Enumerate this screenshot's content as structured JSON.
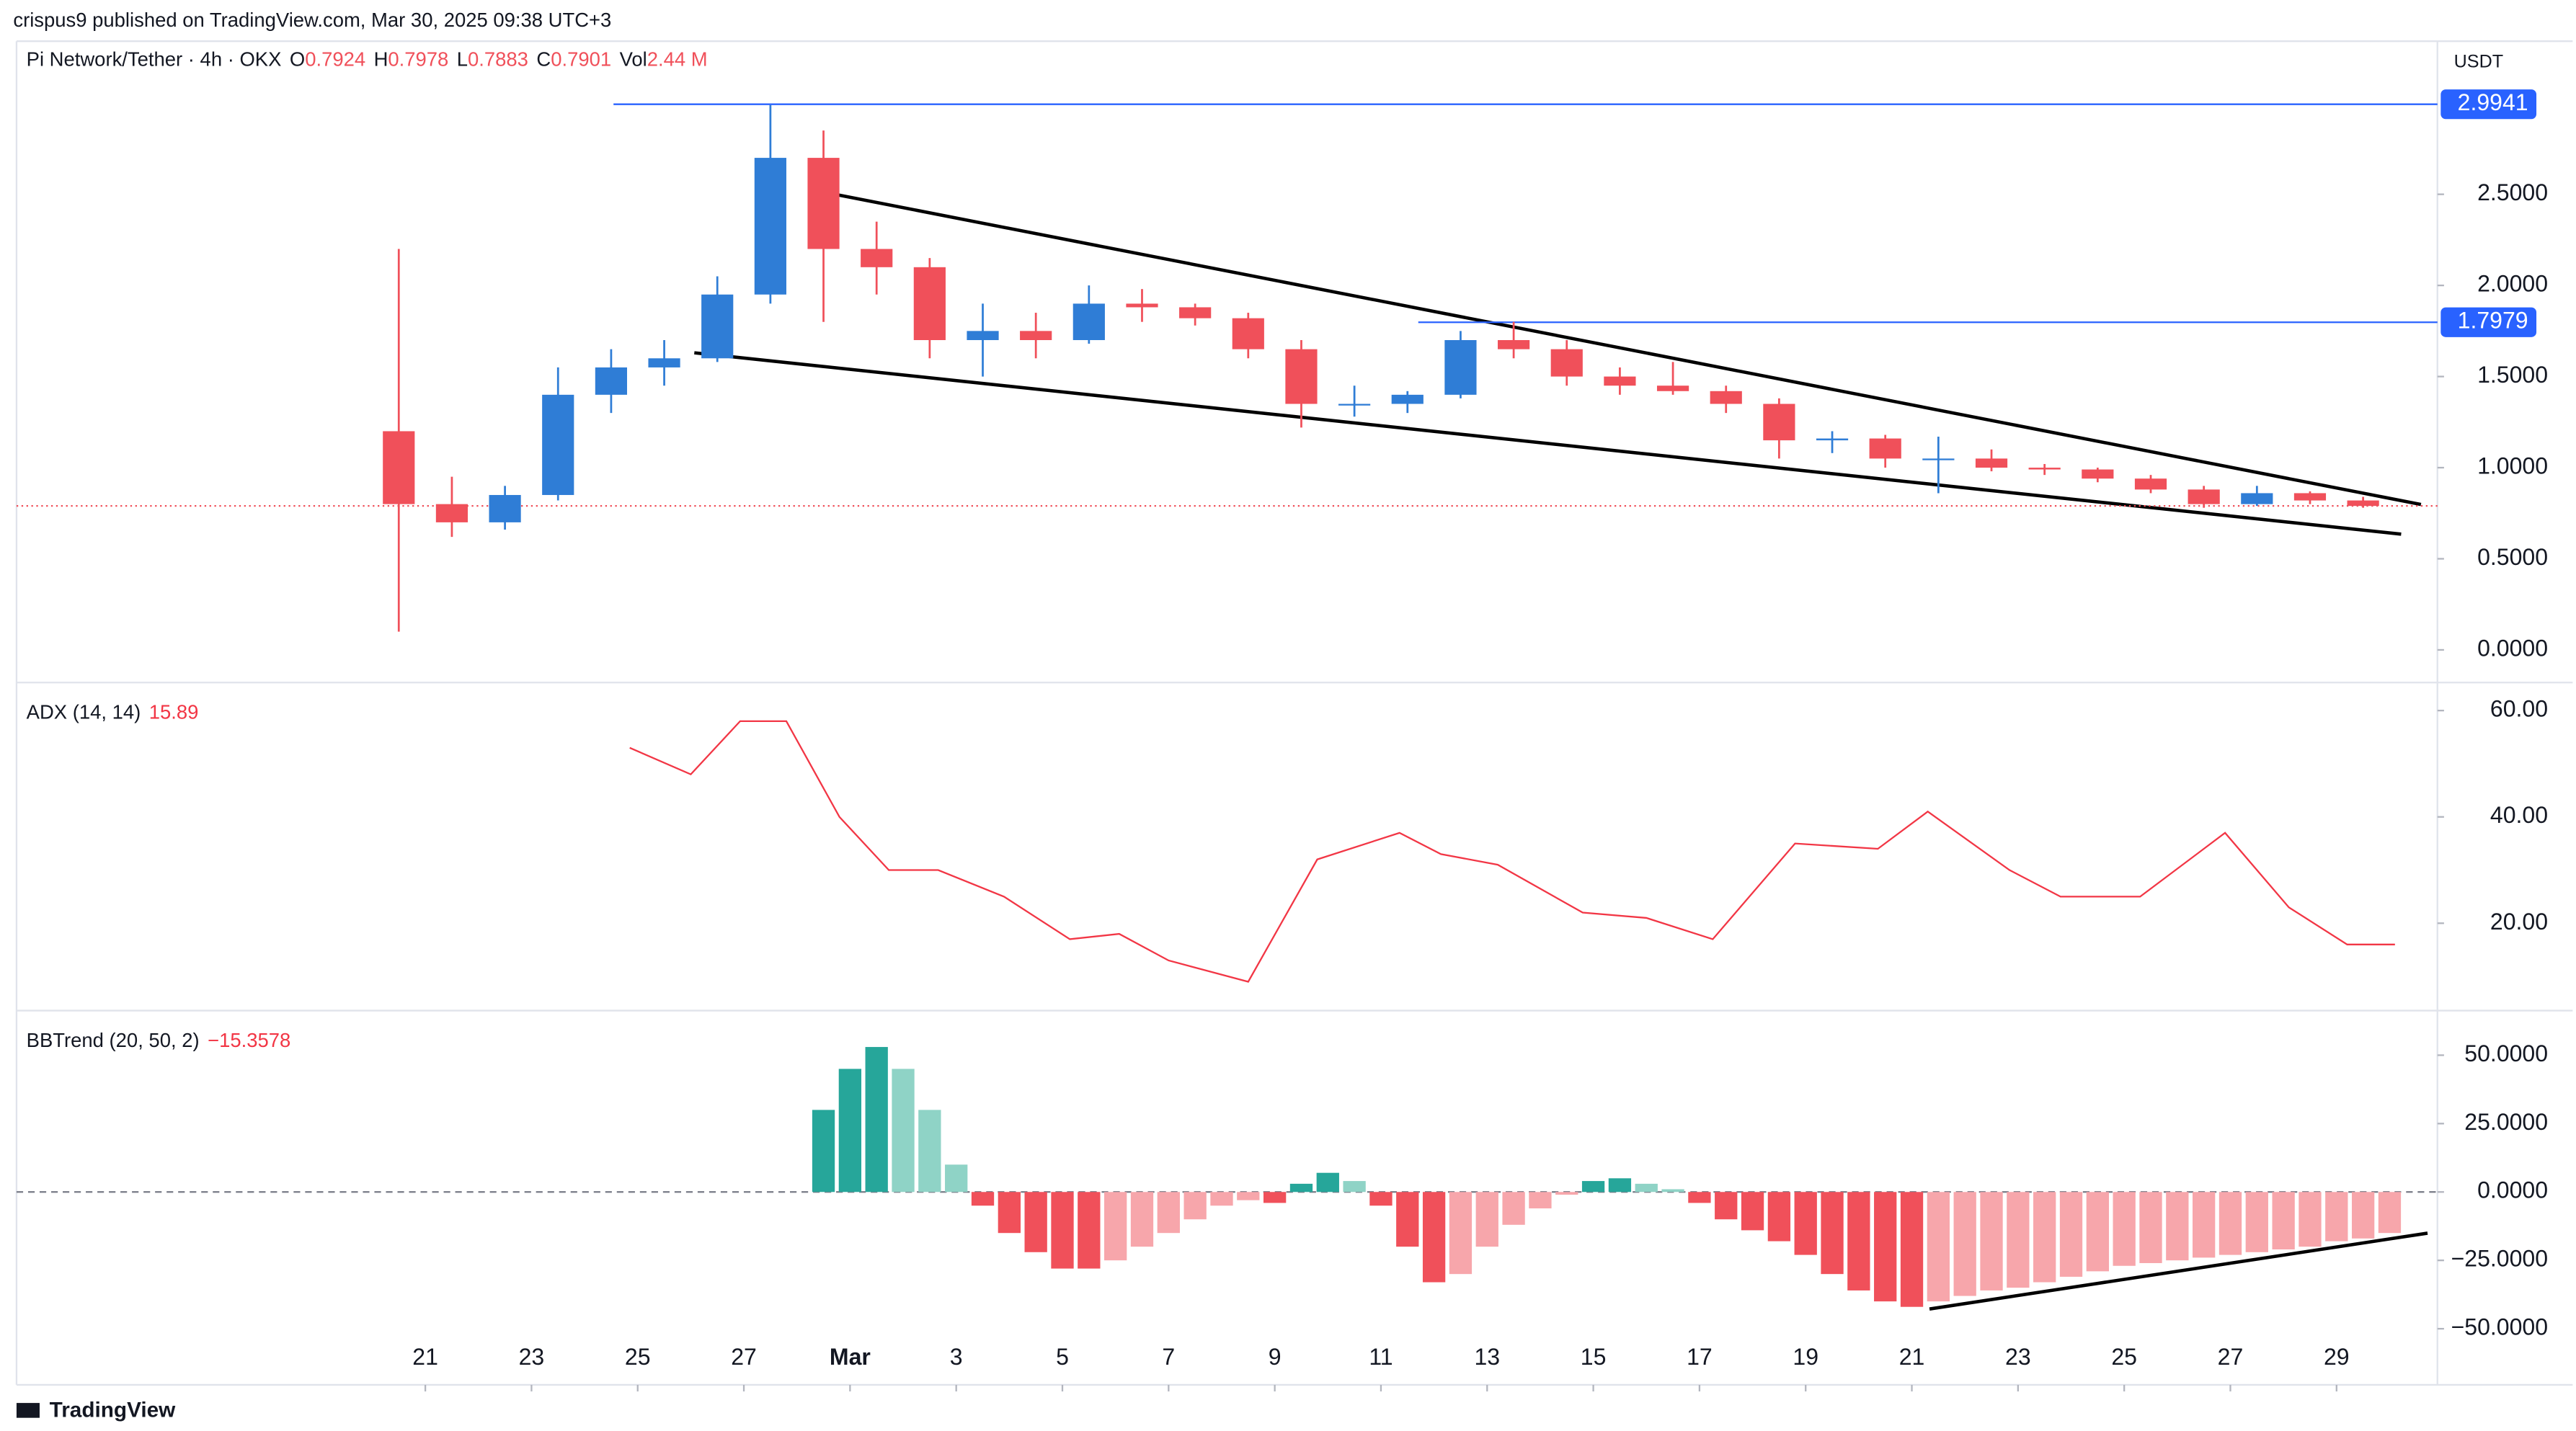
{
  "header": "crispus9 published on TradingView.com, Mar 30, 2025 09:38 UTC+3",
  "footer": "TradingView",
  "chart_data": [
    {
      "type": "candlestick",
      "title": "Pi Network/Tether · 4h · OKX",
      "legend": [
        {
          "label": "O",
          "value": 0.7924
        },
        {
          "label": "H",
          "value": 0.7978
        },
        {
          "label": "L",
          "value": 0.7883
        },
        {
          "label": "C",
          "value": 0.7901
        },
        {
          "label": "Vol",
          "value": "2.44 M"
        }
      ],
      "currency": "USDT",
      "up_color": "#2f7dd6",
      "down_color": "#f0505a",
      "x": [
        0.5,
        1.5,
        2.5,
        3.5,
        4.5,
        5.5,
        6.5,
        7.5,
        8.5,
        9.5,
        10.5,
        11.5,
        12.5,
        13.5,
        14.5,
        15.5,
        16.5,
        17.5,
        18.5,
        19.5,
        20.5,
        21.5,
        22.5,
        23.5,
        24.5,
        25.5,
        26.5,
        27.5,
        28.5,
        29.5,
        30.5,
        31.5,
        32.5,
        33.5,
        34.5,
        35.5,
        36.5,
        37.5
      ],
      "open": [
        1.2,
        0.8,
        0.7,
        0.85,
        1.4,
        1.55,
        1.6,
        1.95,
        2.7,
        2.2,
        2.1,
        1.7,
        1.75,
        1.7,
        1.9,
        1.88,
        1.82,
        1.65,
        1.35,
        1.35,
        1.4,
        1.7,
        1.65,
        1.5,
        1.45,
        1.42,
        1.35,
        1.15,
        1.16,
        1.05,
        1.05,
        1.0,
        0.99,
        0.94,
        0.88,
        0.8,
        0.86,
        0.82
      ],
      "high": [
        2.2,
        0.95,
        0.9,
        1.55,
        1.65,
        1.7,
        2.05,
        2.99,
        2.85,
        2.35,
        2.15,
        1.9,
        1.85,
        2.0,
        1.98,
        1.9,
        1.85,
        1.7,
        1.45,
        1.42,
        1.75,
        1.8,
        1.7,
        1.55,
        1.58,
        1.45,
        1.38,
        1.2,
        1.18,
        1.17,
        1.1,
        1.02,
        1.0,
        0.96,
        0.9,
        0.9,
        0.87,
        0.84
      ],
      "low": [
        0.1,
        0.62,
        0.66,
        0.82,
        1.3,
        1.45,
        1.58,
        1.9,
        1.8,
        1.95,
        1.6,
        1.5,
        1.6,
        1.68,
        1.8,
        1.78,
        1.6,
        1.22,
        1.28,
        1.3,
        1.38,
        1.6,
        1.45,
        1.4,
        1.4,
        1.3,
        1.05,
        1.08,
        1.0,
        0.86,
        0.98,
        0.96,
        0.92,
        0.86,
        0.78,
        0.79,
        0.8,
        0.78
      ],
      "close": [
        0.8,
        0.7,
        0.85,
        1.4,
        1.55,
        1.6,
        1.95,
        2.7,
        2.2,
        2.1,
        1.7,
        1.75,
        1.7,
        1.9,
        1.88,
        1.82,
        1.65,
        1.35,
        1.35,
        1.4,
        1.7,
        1.65,
        1.5,
        1.45,
        1.42,
        1.35,
        1.15,
        1.16,
        1.05,
        1.05,
        1.0,
        0.99,
        0.94,
        0.88,
        0.8,
        0.86,
        0.82,
        0.79
      ],
      "xlim": [
        -6.7,
        38.9
      ],
      "ylim": [
        -0.17,
        3.34
      ],
      "xticks": [
        {
          "value": 1,
          "label": "21"
        },
        {
          "value": 3,
          "label": "23"
        },
        {
          "value": 5,
          "label": "25"
        },
        {
          "value": 7,
          "label": "27"
        },
        {
          "value": 9,
          "label": "Mar"
        },
        {
          "value": 11,
          "label": "3"
        },
        {
          "value": 13,
          "label": "5"
        },
        {
          "value": 15,
          "label": "7"
        },
        {
          "value": 17,
          "label": "9"
        },
        {
          "value": 19,
          "label": "11"
        },
        {
          "value": 21,
          "label": "13"
        },
        {
          "value": 23,
          "label": "15"
        },
        {
          "value": 25,
          "label": "17"
        },
        {
          "value": 27,
          "label": "19"
        },
        {
          "value": 29,
          "label": "21"
        },
        {
          "value": 31,
          "label": "23"
        },
        {
          "value": 33,
          "label": "25"
        },
        {
          "value": 35,
          "label": "27"
        },
        {
          "value": 37,
          "label": "29"
        }
      ],
      "yticks": [
        {
          "value": 0,
          "label": "0.0000"
        },
        {
          "value": 0.5,
          "label": "0.5000"
        },
        {
          "value": 1,
          "label": "1.0000"
        },
        {
          "value": 1.5,
          "label": "1.5000"
        },
        {
          "value": 2,
          "label": "2.0000"
        },
        {
          "value": 2.5,
          "label": "2.5000"
        }
      ],
      "price_lines": [
        2.9941,
        1.7979
      ],
      "price_line_color": "#2962ff",
      "last_price": 0.7901,
      "last_price_color": "#f0505a"
    },
    {
      "type": "line",
      "title": "ADX (14, 14)",
      "last_value": 15.89,
      "color": "#f23645",
      "x": [
        4.85,
        6.0,
        6.93,
        7.8,
        8.8,
        9.73,
        10.66,
        11.9,
        13.14,
        14.07,
        15.0,
        16.5,
        17.8,
        19.35,
        20.13,
        21.2,
        22.8,
        24.0,
        25.25,
        26.8,
        28.36,
        29.3,
        30.84,
        31.8,
        33.3,
        34.9,
        36.1,
        37.2,
        38.1
      ],
      "values": [
        53,
        48,
        58,
        58,
        40,
        30,
        30,
        25,
        17,
        18,
        13,
        9,
        32,
        37,
        33,
        31,
        22,
        21,
        17,
        35,
        34,
        41,
        30,
        25,
        25,
        37,
        23,
        16,
        16
      ],
      "xlim": [
        -6.7,
        38.9
      ],
      "ylim": [
        3.88,
        64.96
      ],
      "yticks": [
        {
          "value": 20,
          "label": "20.00"
        },
        {
          "value": 40,
          "label": "40.00"
        },
        {
          "value": 60,
          "label": "60.00"
        }
      ]
    },
    {
      "type": "histogram",
      "title": "BBTrend (20, 50, 2)",
      "last_value": "−15.3578",
      "up_strong": "#26a69a",
      "up_weak": "#8fd3c6",
      "down_strong": "#f0505a",
      "down_weak": "#f7a6ab",
      "x": [
        8.5,
        9,
        9.5,
        10,
        10.5,
        11,
        11.5,
        12,
        12.5,
        13,
        13.5,
        14,
        14.5,
        15,
        15.5,
        16,
        16.5,
        17,
        17.5,
        18,
        18.5,
        19,
        19.5,
        20,
        20.5,
        21,
        21.5,
        22,
        22.5,
        23,
        23.5,
        24,
        24.5,
        25,
        25.5,
        26,
        26.5,
        27,
        27.5,
        28,
        28.5,
        29,
        29.5,
        30,
        30.5,
        31,
        31.5,
        32,
        32.5,
        33,
        33.5,
        34,
        34.5,
        35,
        35.5,
        36,
        36.5,
        37,
        37.5,
        38
      ],
      "values": [
        30,
        45,
        53,
        45,
        30,
        10,
        -5,
        -15,
        -22,
        -28,
        -28,
        -25,
        -20,
        -15,
        -10,
        -5,
        -3,
        -4,
        3,
        7,
        4,
        -5,
        -20,
        -33,
        -30,
        -20,
        -12,
        -6,
        -1,
        4,
        5,
        3,
        1,
        -4,
        -10,
        -14,
        -18,
        -23,
        -30,
        -36,
        -40,
        -42,
        -40,
        -38,
        -36,
        -35,
        -33,
        -31,
        -29,
        -27,
        -26,
        -25,
        -24,
        -23,
        -22,
        -21,
        -20,
        -18,
        -17,
        -15
      ],
      "xlim": [
        -6.7,
        38.9
      ],
      "ylim": [
        -69.3,
        65.7
      ],
      "yticks": [
        {
          "value": 50,
          "label": "50.0000"
        },
        {
          "value": 25,
          "label": "25.0000"
        },
        {
          "value": 0,
          "label": "0.0000"
        },
        {
          "value": -25,
          "label": "−25.0000"
        },
        {
          "value": -50,
          "label": "−50.0000"
        }
      ]
    }
  ]
}
